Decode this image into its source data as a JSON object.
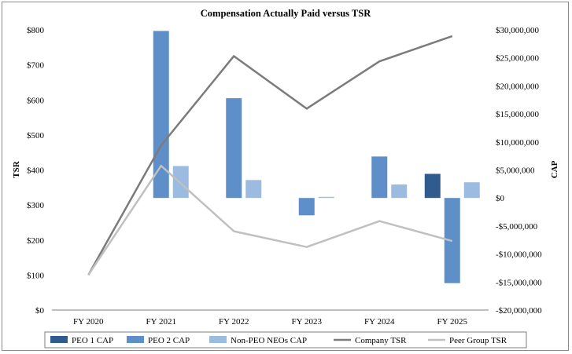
{
  "chart_data": {
    "type": "bar",
    "title": "Compensation Actually Paid versus TSR",
    "categories": [
      "FY 2020",
      "FY 2021",
      "FY 2022",
      "FY 2023",
      "FY 2024",
      "FY 2025"
    ],
    "ylabel": "TSR",
    "y2label": "CAP",
    "ylim": [
      0,
      800
    ],
    "y2lim": [
      -20000000,
      30000000
    ],
    "yticks": [
      0,
      100,
      200,
      300,
      400,
      500,
      600,
      700,
      800
    ],
    "ytick_labels": [
      "$0",
      "$100",
      "$200",
      "$300",
      "$400",
      "$500",
      "$600",
      "$700",
      "$800"
    ],
    "y2ticks": [
      -20000000,
      -15000000,
      -10000000,
      -5000000,
      0,
      5000000,
      10000000,
      15000000,
      20000000,
      25000000,
      30000000
    ],
    "y2tick_labels": [
      "-$20,000,000",
      "-$15,000,000",
      "-$10,000,000",
      "-$5,000,000",
      "$0",
      "$5,000,000",
      "$10,000,000",
      "$15,000,000",
      "$20,000,000",
      "$25,000,000",
      "$30,000,000"
    ],
    "bar_series": [
      {
        "name": "PEO 1 CAP",
        "color": "#2f5b8f",
        "values": [
          null,
          null,
          null,
          null,
          null,
          4300000
        ]
      },
      {
        "name": "PEO 2 CAP",
        "color": "#5f8fc8",
        "values": [
          null,
          29800000,
          17800000,
          -3100000,
          7400000,
          -15200000
        ]
      },
      {
        "name": "Non-PEO NEOs CAP",
        "color": "#9bbbe0",
        "values": [
          null,
          5700000,
          3200000,
          200000,
          2400000,
          2800000
        ]
      }
    ],
    "line_series": [
      {
        "name": "Company TSR",
        "color": "#7b7b7b",
        "values": [
          100,
          470,
          725,
          575,
          710,
          782
        ]
      },
      {
        "name": "Peer Group TSR",
        "color": "#c0c0c0",
        "values": [
          100,
          412,
          225,
          180,
          254,
          197
        ]
      }
    ],
    "legend": [
      "PEO 1 CAP",
      "PEO 2 CAP",
      "Non-PEO NEOs CAP",
      "Company TSR",
      "Peer Group TSR"
    ],
    "legend_position": "bottom",
    "grid": false
  }
}
